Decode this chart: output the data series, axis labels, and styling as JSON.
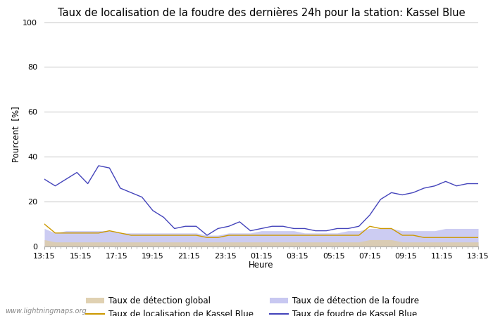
{
  "title": "Taux de localisation de la foudre des dernières 24h pour la station: Kassel Blue",
  "xlabel": "Heure",
  "ylabel": "Pourcent  [%]",
  "watermark": "www.lightningmaps.org",
  "xlabels": [
    "13:15",
    "15:15",
    "17:15",
    "19:15",
    "21:15",
    "23:15",
    "01:15",
    "03:15",
    "05:15",
    "07:15",
    "09:15",
    "11:15",
    "13:15"
  ],
  "ylim": [
    0,
    100
  ],
  "yticks": [
    0,
    20,
    40,
    60,
    80,
    100
  ],
  "background_color": "#ffffff",
  "plot_bg_color": "#ffffff",
  "grid_color": "#cccccc",
  "blue_line": [
    30,
    27,
    30,
    33,
    28,
    36,
    35,
    26,
    24,
    22,
    16,
    13,
    8,
    9,
    9,
    5,
    8,
    9,
    11,
    7,
    8,
    9,
    9,
    8,
    8,
    7,
    7,
    8,
    8,
    9,
    14,
    21,
    24,
    23,
    24,
    26,
    27,
    29,
    27,
    28,
    28
  ],
  "orange_line": [
    10,
    6,
    6,
    6,
    6,
    6,
    7,
    6,
    5,
    5,
    5,
    5,
    5,
    5,
    5,
    4,
    4,
    5,
    5,
    5,
    5,
    5,
    5,
    5,
    5,
    5,
    5,
    5,
    5,
    5,
    9,
    8,
    8,
    5,
    5,
    4,
    4,
    4,
    4,
    4,
    4
  ],
  "fill_blue": [
    8,
    6,
    7,
    7,
    7,
    7,
    7,
    6,
    6,
    6,
    6,
    6,
    6,
    6,
    6,
    5,
    5,
    6,
    6,
    6,
    7,
    7,
    7,
    7,
    6,
    6,
    6,
    6,
    7,
    7,
    8,
    8,
    8,
    7,
    7,
    7,
    7,
    8,
    8,
    8,
    8
  ],
  "fill_tan": [
    3,
    2,
    2,
    2,
    2,
    2,
    2,
    2,
    2,
    2,
    2,
    2,
    2,
    2,
    2,
    2,
    2,
    2,
    2,
    2,
    2,
    2,
    2,
    2,
    2,
    2,
    2,
    2,
    2,
    2,
    3,
    3,
    3,
    2,
    2,
    2,
    2,
    2,
    2,
    2,
    2
  ],
  "blue_line_color": "#4444bb",
  "orange_line_color": "#cc9900",
  "fill_blue_color": "#bbbbee",
  "fill_tan_color": "#ddccaa",
  "legend_labels": [
    "Taux de détection global",
    "Taux de localisation de Kassel Blue",
    "Taux de détection de la foudre",
    "Taux de foudre de Kassel Blue"
  ],
  "title_fontsize": 10.5,
  "label_fontsize": 8.5,
  "tick_fontsize": 8
}
